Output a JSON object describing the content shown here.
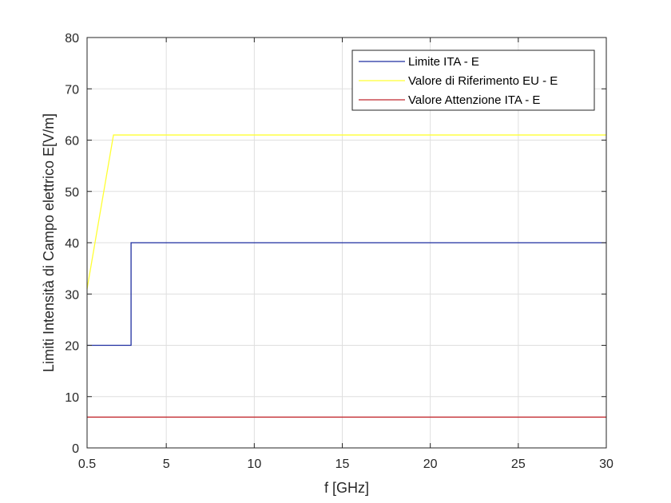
{
  "chart_data": {
    "type": "line",
    "title": "",
    "xlabel": "f [GHz]",
    "ylabel": "Limiti Intensità di Campo elettrico E[V/m]",
    "xlim": [
      0.5,
      30
    ],
    "ylim": [
      0,
      80
    ],
    "x_ticks": [
      0.5,
      5,
      10,
      15,
      20,
      25,
      30
    ],
    "x_tick_labels": [
      "0.5",
      "5",
      "10",
      "15",
      "20",
      "25",
      "30"
    ],
    "y_ticks": [
      0,
      10,
      20,
      30,
      40,
      50,
      60,
      70,
      80
    ],
    "y_tick_labels": [
      "0",
      "10",
      "20",
      "30",
      "40",
      "50",
      "60",
      "70",
      "80"
    ],
    "grid": true,
    "legend_position": "top-right",
    "series": [
      {
        "name": "Limite ITA - E",
        "color": "#1f2fa0",
        "x": [
          0.5,
          3,
          3,
          30
        ],
        "y": [
          20,
          20,
          40,
          40
        ]
      },
      {
        "name": "Valore di Riferimento EU - E",
        "color": "#ffff33",
        "x": [
          0.5,
          2,
          30
        ],
        "y": [
          31,
          61,
          61
        ]
      },
      {
        "name": "Valore Attenzione ITA - E",
        "color": "#c1272d",
        "x": [
          0.5,
          30
        ],
        "y": [
          6,
          6
        ]
      }
    ]
  }
}
